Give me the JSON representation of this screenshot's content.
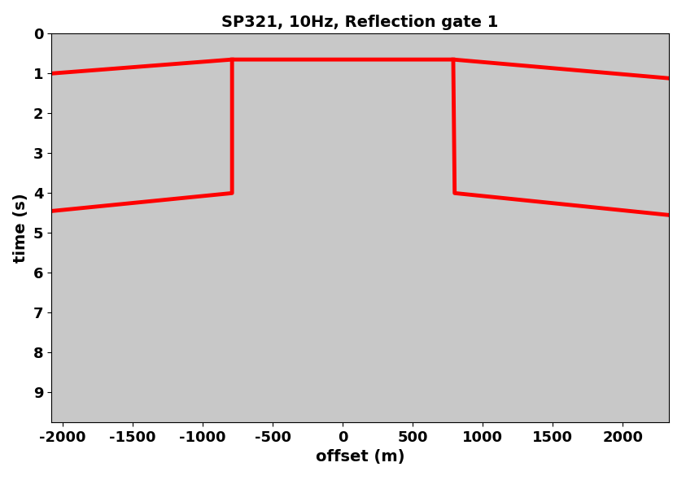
{
  "chart_data": {
    "type": "line",
    "title": "SP321, 10Hz, Reflection gate 1",
    "x_label": "offset (m)",
    "y_label": "time (s)",
    "series": [
      {
        "color": "#ff0000",
        "x": [
          -2080,
          -790,
          790,
          2330
        ],
        "values": [
          1.0,
          0.65,
          0.65,
          1.12
        ]
      },
      {
        "color": "#ff0000",
        "x": [
          -790,
          -790,
          -2080
        ],
        "values": [
          0.65,
          4.0,
          4.45
        ]
      },
      {
        "color": "#ff0000",
        "x": [
          790,
          800,
          2330
        ],
        "values": [
          0.65,
          4.0,
          4.55
        ]
      }
    ],
    "xlim": [
      -2080,
      2330
    ],
    "ylim": [
      9.75,
      0
    ],
    "xticks": [
      -2000,
      -1500,
      -1000,
      -500,
      0,
      500,
      1000,
      1500,
      2000
    ],
    "yticks": [
      0,
      1,
      2,
      3,
      4,
      5,
      6,
      7,
      8,
      9
    ],
    "grid": false
  }
}
